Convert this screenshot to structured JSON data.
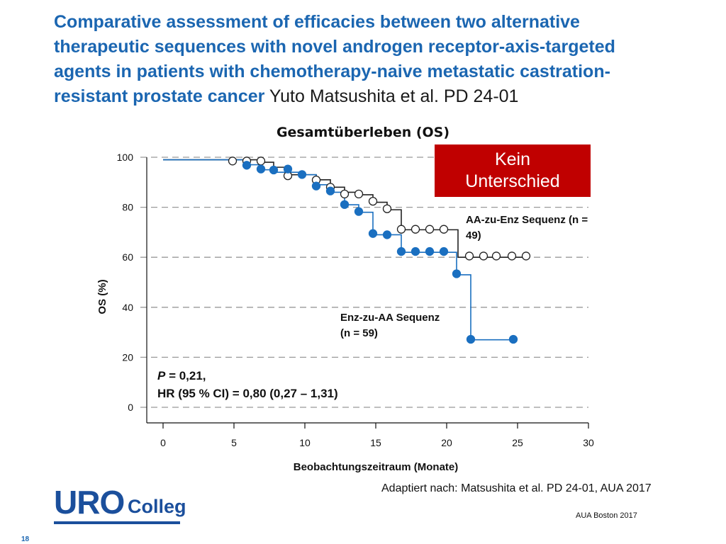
{
  "title": {
    "main": "Comparative assessment of efficacies between two alternative therapeutic sequences with novel androgen receptor-axis-targeted agents in patients with chemotherapy-naive metastatic castration-resistant prostate cancer",
    "sub": "Yuto Matsushita et al. PD 24-01"
  },
  "badge": {
    "line1": "Kein",
    "line2": "Unterschied"
  },
  "annotations": {
    "aa_to_enz": "AA-zu-Enz Sequenz (n = 49)",
    "enz_to_aa_line1": "Enz-zu-AA Sequenz",
    "enz_to_aa_line2": "(n = 59)"
  },
  "stats": {
    "p_letter": "P",
    "p_value": " = 0,21,",
    "hr": "HR (95 % CI) = 0,80 (0,27 – 1,31)"
  },
  "source": "Adaptiert nach: Matsushita et al. PD 24-01, AUA 2017",
  "conference": "AUA Boston 2017",
  "page_number": "18",
  "logo": {
    "part1": "URO",
    "part2": "Colleg"
  },
  "colors": {
    "title": "#1b66b1",
    "badge": "#c00000",
    "enz_series": "#1a6fc0",
    "aa_series": "#222222"
  },
  "chart_data": {
    "type": "line",
    "step": true,
    "title": "Gesamtüberleben (OS)",
    "xlabel": "Beobachtungszeitraum (Monate)",
    "ylabel": "OS (%)",
    "xlim": [
      0,
      30
    ],
    "ylim": [
      0,
      100
    ],
    "xticks": [
      0,
      5,
      10,
      15,
      20,
      25,
      30
    ],
    "yticks": [
      0,
      20,
      40,
      60,
      80,
      100
    ],
    "grid": "dashed horizontal",
    "series": [
      {
        "name": "AA-zu-Enz Sequenz (n = 49)",
        "marker": "open-circle",
        "steps": [
          [
            0,
            99
          ],
          [
            6.8,
            98
          ],
          [
            7.8,
            96
          ],
          [
            8.8,
            93
          ],
          [
            10.8,
            91
          ],
          [
            11.8,
            88
          ],
          [
            12.8,
            86
          ],
          [
            13.8,
            85
          ],
          [
            14.8,
            82
          ],
          [
            15.8,
            79
          ],
          [
            16.8,
            71
          ],
          [
            20.8,
            60
          ],
          [
            25.8,
            60
          ]
        ],
        "censor": [
          [
            4.9,
            98.5
          ],
          [
            5.9,
            98.5
          ],
          [
            6.9,
            98.5
          ],
          [
            8.8,
            92.6
          ],
          [
            10.8,
            90.9
          ],
          [
            11.8,
            88
          ],
          [
            12.8,
            85.3
          ],
          [
            13.8,
            85.3
          ],
          [
            14.8,
            82.4
          ],
          [
            15.8,
            79.4
          ],
          [
            16.8,
            71.2
          ],
          [
            17.8,
            71.2
          ],
          [
            18.8,
            71.2
          ],
          [
            19.8,
            71.2
          ],
          [
            21.6,
            60.5
          ],
          [
            22.6,
            60.5
          ],
          [
            23.5,
            60.5
          ],
          [
            24.6,
            60.5
          ],
          [
            25.6,
            60.5
          ]
        ]
      },
      {
        "name": "Enz-zu-AA Sequenz (n = 59)",
        "marker": "filled-circle",
        "steps": [
          [
            0,
            99
          ],
          [
            6.0,
            97
          ],
          [
            6.9,
            95
          ],
          [
            7.8,
            94
          ],
          [
            9.8,
            93
          ],
          [
            10.8,
            89
          ],
          [
            11.8,
            86
          ],
          [
            12.8,
            81
          ],
          [
            13.8,
            78
          ],
          [
            14.8,
            69
          ],
          [
            16.8,
            62
          ],
          [
            20.7,
            53
          ],
          [
            21.7,
            27
          ],
          [
            24.7,
            27
          ]
        ],
        "censor": [
          [
            5.9,
            96.8
          ],
          [
            6.9,
            95.3
          ],
          [
            7.8,
            94.9
          ],
          [
            8.8,
            95.3
          ],
          [
            9.8,
            93.1
          ],
          [
            10.8,
            88.5
          ],
          [
            11.8,
            86.5
          ],
          [
            12.8,
            81.1
          ],
          [
            13.8,
            78.3
          ],
          [
            14.8,
            69.5
          ],
          [
            15.8,
            69
          ],
          [
            16.8,
            62.3
          ],
          [
            17.8,
            62.3
          ],
          [
            18.8,
            62.3
          ],
          [
            19.8,
            62.3
          ],
          [
            20.7,
            53.4
          ],
          [
            21.7,
            27.2
          ],
          [
            24.7,
            27.2
          ]
        ]
      }
    ]
  }
}
